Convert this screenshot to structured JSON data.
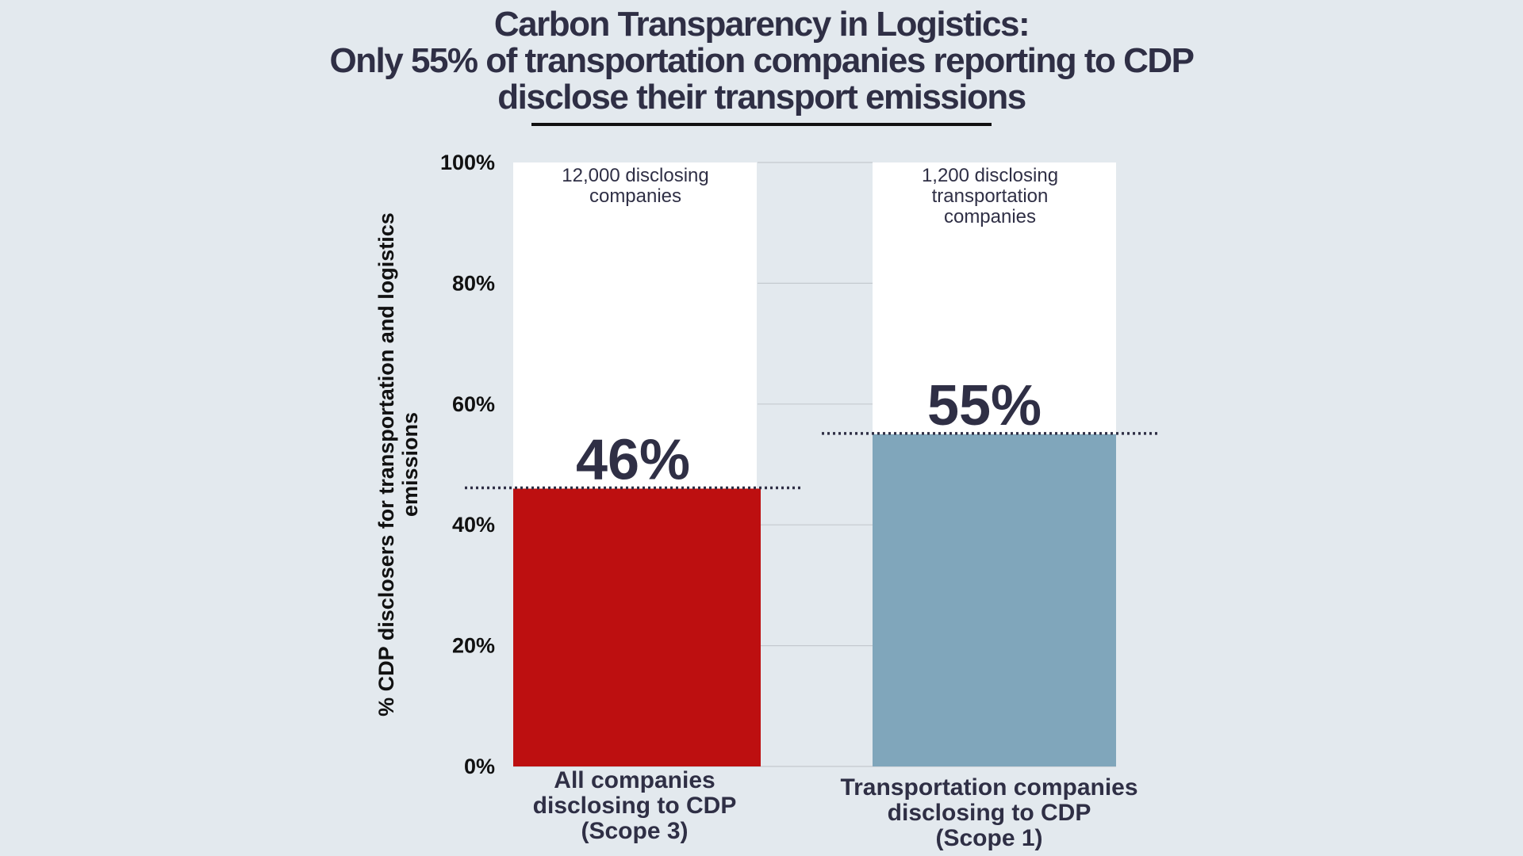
{
  "title_lines": [
    "Carbon Transparency in Logistics:",
    "Only 55% of transportation companies reporting to CDP",
    "disclose their transport emissions"
  ],
  "chart_data": {
    "type": "bar",
    "title": "Carbon Transparency in Logistics: Only 55% of transportation companies reporting to CDP disclose their transport emissions",
    "ylabel_lines": [
      "% CDP disclosers for transportation and logistics",
      "emissions"
    ],
    "ylim": [
      0,
      100
    ],
    "yticks": [
      0,
      20,
      40,
      60,
      80,
      100
    ],
    "ytick_labels": [
      "0%",
      "20%",
      "40%",
      "60%",
      "80%",
      "100%"
    ],
    "grid": true,
    "categories": [
      [
        "All companies",
        "disclosing to CDP",
        "(Scope 3)"
      ],
      [
        "Transportation companies",
        "disclosing to CDP",
        "(Scope 1)"
      ]
    ],
    "values": [
      46,
      55
    ],
    "value_labels": [
      "46%",
      "55%"
    ],
    "background_note_lines": [
      [
        "12,000 disclosing",
        "companies"
      ],
      [
        "1,200 disclosing",
        "transportation",
        "companies"
      ]
    ],
    "colors": {
      "bar_1": "#bd0f10",
      "bar_2": "#80a6bb",
      "background_bar": "#ffffff",
      "value_label": "#2f2f45",
      "reference_line": "#2f2f45",
      "grid": "#c4c9cf"
    }
  }
}
